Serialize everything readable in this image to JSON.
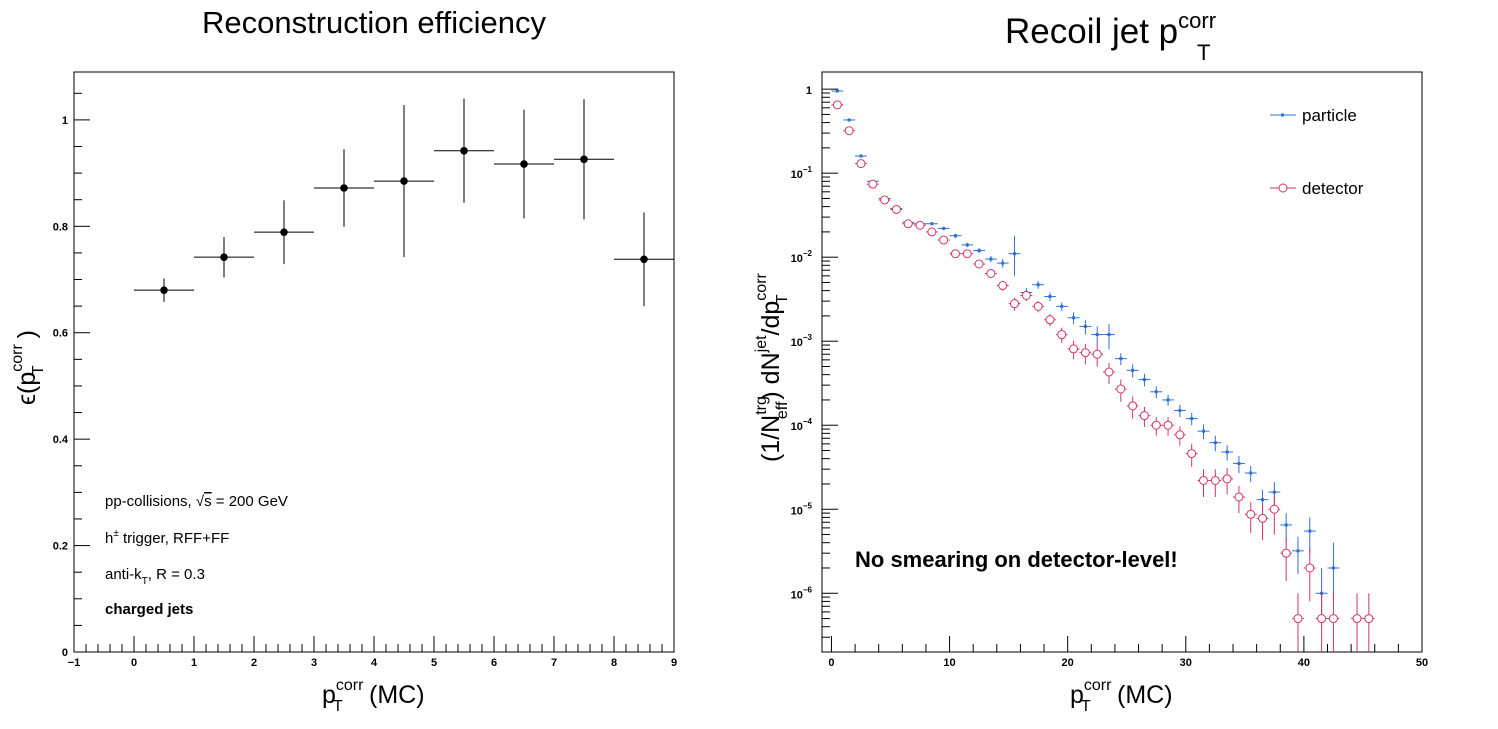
{
  "chart_data": [
    {
      "type": "scatter",
      "title": "Reconstruction efficiency",
      "xlabel": "p_T^corr(MC)",
      "ylabel": "ε(p_T^corr)",
      "xlim": [
        -1,
        9
      ],
      "ylim": [
        0,
        1.09
      ],
      "x_ticks": [
        "−1",
        "0",
        "1",
        "2",
        "3",
        "4",
        "5",
        "6",
        "7",
        "8",
        "9"
      ],
      "y_ticks": [
        "0",
        "0.2",
        "0.4",
        "0.6",
        "0.8",
        "1"
      ],
      "series": [
        {
          "x": [
            0.5,
            1.5,
            2.5,
            3.5,
            4.5,
            5.5,
            6.5,
            7.5,
            8.5
          ],
          "xerr": [
            0.5,
            0.5,
            0.5,
            0.5,
            0.5,
            0.5,
            0.5,
            0.5,
            0.5
          ],
          "y": [
            0.68,
            0.742,
            0.789,
            0.872,
            0.885,
            0.942,
            0.917,
            0.926,
            0.738
          ],
          "yerr": [
            0.022,
            0.038,
            0.06,
            0.073,
            0.143,
            0.098,
            0.102,
            0.113,
            0.088
          ]
        }
      ],
      "annotations": [
        {
          "pre": "pp-collisions, ",
          "sqrt": "√",
          "s": "s",
          "post": " = 200 GeV"
        },
        {
          "base": "h",
          "sup": "±",
          "post": " trigger, RFF+FF"
        },
        {
          "pre": "anti-k",
          "sub": "T",
          "post": ", R = 0.3"
        },
        {
          "text": "charged jets"
        }
      ]
    },
    {
      "type": "scatter",
      "title": "Recoil jet p_T^corr",
      "xlabel": "p_T^corr(MC)",
      "ylabel": "(1/N_eff^trg) dN^jet/dp_T^corr",
      "xlim": [
        -0.8,
        50
      ],
      "ylim": [
        2e-07,
        1.6
      ],
      "log_y": true,
      "x_ticks": [
        "0",
        "10",
        "20",
        "30",
        "40",
        "50"
      ],
      "y_ticks": [
        {
          "mant": "1",
          "exp": ""
        },
        {
          "mant": "10",
          "exp": "−1"
        },
        {
          "mant": "10",
          "exp": "−2"
        },
        {
          "mant": "10",
          "exp": "−3"
        },
        {
          "mant": "10",
          "exp": "−4"
        },
        {
          "mant": "10",
          "exp": "−5"
        },
        {
          "mant": "10",
          "exp": "−6"
        }
      ],
      "legend_position": "top-right",
      "note": "No smearing on detector-level!",
      "series": [
        {
          "name": "particle",
          "color": "#2f6fd6",
          "x": [
            0.5,
            1.5,
            2.5,
            3.5,
            4.5,
            5.5,
            6.5,
            7.5,
            8.5,
            9.5,
            10.5,
            11.5,
            12.5,
            13.5,
            14.5,
            15.5,
            16.5,
            17.5,
            18.5,
            19.5,
            20.5,
            21.5,
            22.5,
            23.5,
            24.5,
            25.5,
            26.5,
            27.5,
            28.5,
            29.5,
            30.5,
            31.5,
            32.5,
            33.5,
            34.5,
            35.5,
            36.5,
            37.5,
            38.5,
            39.5,
            40.5,
            41.5,
            42.5
          ],
          "y": [
            0.95,
            0.43,
            0.16,
            0.08,
            0.05,
            0.038,
            0.026,
            0.025,
            0.025,
            0.022,
            0.018,
            0.014,
            0.012,
            0.0095,
            0.0085,
            0.011,
            0.0038,
            0.0047,
            0.0034,
            0.0026,
            0.0019,
            0.0015,
            0.0012,
            0.0012,
            0.00062,
            0.00045,
            0.00035,
            0.00025,
            0.0002,
            0.00015,
            0.00012,
            8.5e-05,
            6.2e-05,
            4.8e-05,
            3.5e-05,
            2.7e-05,
            1.3e-05,
            1.6e-05,
            6.5e-06,
            3.2e-06,
            5.5e-06,
            1e-06,
            2e-06
          ],
          "yerr_low": [
            0.02,
            0.01,
            0.005,
            0.003,
            0.002,
            0.001,
            0.001,
            0.001,
            0.001,
            0.001,
            0.001,
            0.0008,
            0.0008,
            0.0008,
            0.001,
            0.005,
            0.0005,
            0.0005,
            0.0004,
            0.0003,
            0.0003,
            0.0003,
            0.0003,
            0.0004,
            0.0001,
            8e-05,
            6e-05,
            4e-05,
            3e-05,
            2.5e-05,
            2e-05,
            1.7e-05,
            1.3e-05,
            1e-05,
            8e-06,
            6e-06,
            4e-06,
            5e-06,
            2.5e-06,
            1.5e-06,
            2.5e-06,
            6e-07,
            1.2e-06
          ],
          "yerr_high": [
            0.02,
            0.01,
            0.005,
            0.003,
            0.002,
            0.001,
            0.001,
            0.001,
            0.001,
            0.001,
            0.001,
            0.0008,
            0.0008,
            0.0008,
            0.001,
            0.007,
            0.0005,
            0.0005,
            0.0004,
            0.0003,
            0.0003,
            0.0003,
            0.0003,
            0.0004,
            0.0001,
            8e-05,
            6e-05,
            4e-05,
            3e-05,
            2.5e-05,
            2e-05,
            1.7e-05,
            1.3e-05,
            1e-05,
            8e-06,
            6e-06,
            4e-06,
            5e-06,
            2.5e-06,
            1.5e-06,
            2.5e-06,
            1e-06,
            2e-06
          ]
        },
        {
          "name": "detector",
          "color": "#d6336b",
          "x": [
            0.5,
            1.5,
            2.5,
            3.5,
            4.5,
            5.5,
            6.5,
            7.5,
            8.5,
            9.5,
            10.5,
            11.5,
            12.5,
            13.5,
            14.5,
            15.5,
            16.5,
            17.5,
            18.5,
            19.5,
            20.5,
            21.5,
            22.5,
            23.5,
            24.5,
            25.5,
            26.5,
            27.5,
            28.5,
            29.5,
            30.5,
            31.5,
            32.5,
            33.5,
            34.5,
            35.5,
            36.5,
            37.5,
            38.5,
            39.5,
            40.5,
            41.5,
            42.5,
            44.5,
            45.5
          ],
          "y": [
            0.65,
            0.32,
            0.13,
            0.074,
            0.048,
            0.037,
            0.025,
            0.024,
            0.02,
            0.016,
            0.011,
            0.011,
            0.0083,
            0.0064,
            0.0046,
            0.0028,
            0.0035,
            0.0026,
            0.0018,
            0.0012,
            0.00081,
            0.00073,
            0.0007,
            0.00043,
            0.00027,
            0.00017,
            0.00013,
            0.0001,
            0.0001,
            7.7e-05,
            4.6e-05,
            2.2e-05,
            2.2e-05,
            2.3e-05,
            1.4e-05,
            8.7e-06,
            7.8e-06,
            1e-05,
            3e-06,
            5e-07,
            2e-06,
            5e-07,
            5e-07,
            5e-07,
            5e-07
          ],
          "yerr_low": [
            0.02,
            0.01,
            0.005,
            0.003,
            0.002,
            0.001,
            0.001,
            0.001,
            0.001,
            0.001,
            0.001,
            0.001,
            0.0008,
            0.0007,
            0.0006,
            0.0005,
            0.0005,
            0.0004,
            0.0003,
            0.00025,
            0.0002,
            0.0002,
            0.0002,
            0.00012,
            8e-05,
            5e-05,
            3.5e-05,
            2.5e-05,
            2.5e-05,
            2e-05,
            1.4e-05,
            8e-06,
            8e-06,
            8e-06,
            5e-06,
            3.5e-06,
            3.5e-06,
            5e-06,
            1.6e-06,
            3e-07,
            1.2e-06,
            3e-07,
            3e-07,
            3e-07,
            3e-07
          ],
          "yerr_high": [
            0.02,
            0.01,
            0.005,
            0.003,
            0.002,
            0.001,
            0.001,
            0.001,
            0.001,
            0.001,
            0.001,
            0.001,
            0.0008,
            0.0007,
            0.0006,
            0.0005,
            0.0005,
            0.0004,
            0.0003,
            0.00025,
            0.0002,
            0.0002,
            0.0002,
            0.00012,
            8e-05,
            5e-05,
            3.5e-05,
            2.5e-05,
            2.5e-05,
            2e-05,
            1.4e-05,
            8e-06,
            8e-06,
            8e-06,
            5e-06,
            3.5e-06,
            3.5e-06,
            5e-06,
            1.6e-06,
            5e-07,
            1.5e-06,
            5e-07,
            5e-07,
            5e-07,
            5e-07
          ]
        }
      ]
    }
  ]
}
